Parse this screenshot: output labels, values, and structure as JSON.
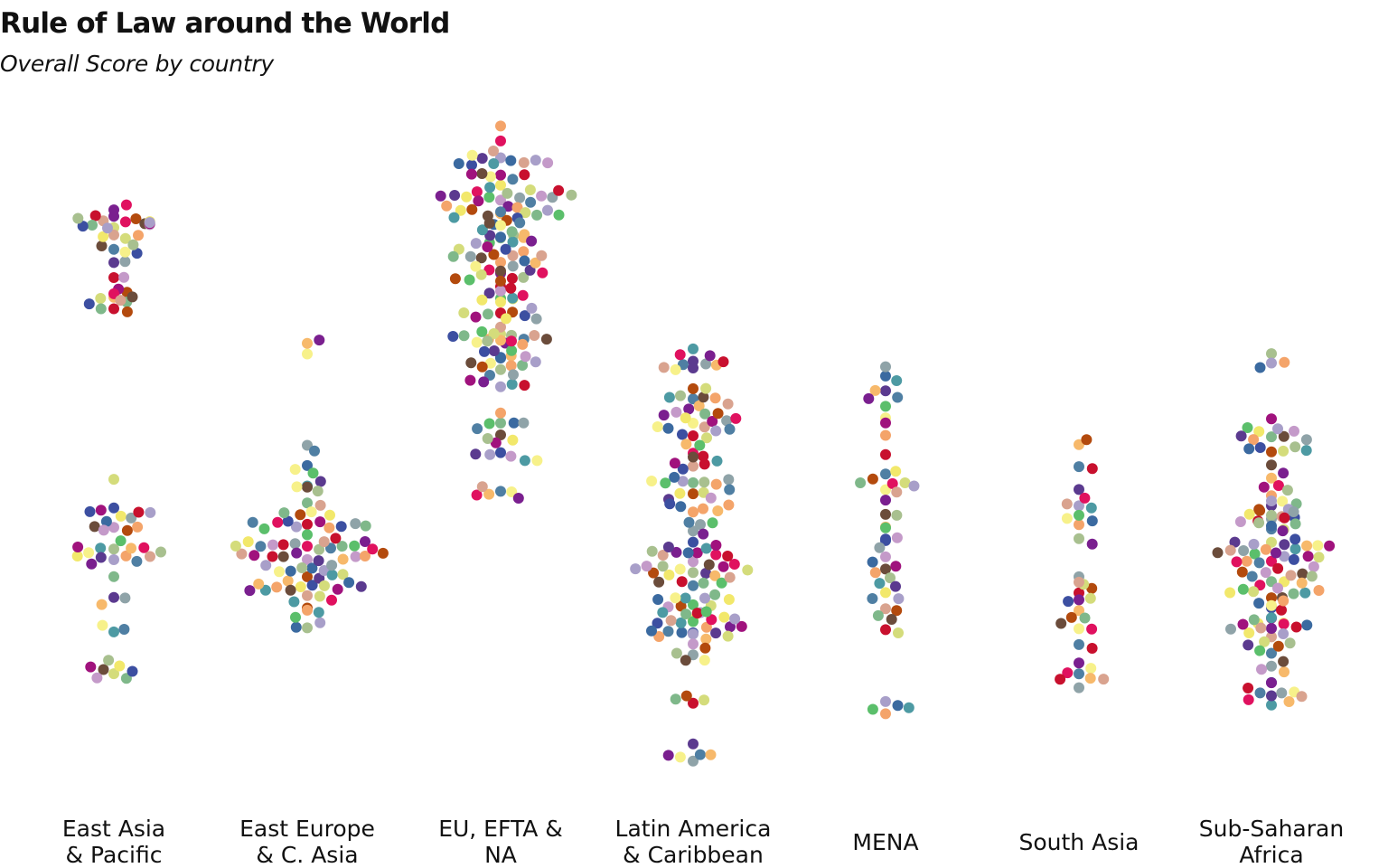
{
  "title": "Rule of Law around the World",
  "subtitle": "Overall Score by country",
  "chart_data": {
    "type": "scatter",
    "title": "Rule of Law around the World",
    "subtitle": "Overall Score by country",
    "xlabel": "",
    "ylabel": "",
    "grid": false,
    "legend": "none",
    "categories": [
      [
        "East Asia",
        "& Pacific"
      ],
      [
        "East Europe",
        "& C. Asia"
      ],
      [
        "EU, EFTA &",
        "NA"
      ],
      [
        "Latin America",
        "& Caribbean"
      ],
      [
        "MENA"
      ],
      [
        "South Asia"
      ],
      [
        "Sub-Saharan",
        "Africa"
      ]
    ],
    "palette": [
      "#7a1f8f",
      "#c8102e",
      "#7fb88a",
      "#f2e86b",
      "#a8c08f",
      "#3b6aa0",
      "#5b3a8f",
      "#f7f18a",
      "#e0115f",
      "#b34a0d",
      "#6b4c3b",
      "#c49ac9",
      "#a89fc9",
      "#5bbf6b",
      "#8fa3a8",
      "#f7b96b",
      "#d9a38f",
      "#d4dc7b",
      "#3c4fa1",
      "#a0127d",
      "#f4a46a",
      "#4d9aa3",
      "#4f7fa3"
    ],
    "ylim": [
      0,
      100
    ],
    "clusters": [
      [
        0,
        83,
        3,
        14
      ],
      [
        0,
        78,
        12,
        20
      ],
      [
        0,
        72,
        4,
        8
      ],
      [
        0,
        38,
        14,
        30
      ],
      [
        0,
        25,
        6,
        6
      ],
      [
        0,
        17,
        4,
        8
      ],
      [
        1,
        65,
        3,
        3
      ],
      [
        1,
        48,
        8,
        7
      ],
      [
        1,
        33,
        18,
        75
      ],
      [
        1,
        25,
        4,
        6
      ],
      [
        2,
        88,
        18,
        55
      ],
      [
        2,
        77,
        14,
        40
      ],
      [
        2,
        69,
        13,
        30
      ],
      [
        2,
        63,
        11,
        26
      ],
      [
        2,
        52,
        9,
        16
      ],
      [
        2,
        43,
        4,
        6
      ],
      [
        3,
        63,
        4,
        10
      ],
      [
        3,
        55,
        12,
        32
      ],
      [
        3,
        46,
        8,
        20
      ],
      [
        3,
        33,
        18,
        55
      ],
      [
        3,
        23,
        10,
        28
      ],
      [
        3,
        12,
        3,
        4
      ],
      [
        3,
        5,
        3,
        6
      ],
      [
        4,
        59,
        13,
        9
      ],
      [
        4,
        44,
        18,
        18
      ],
      [
        4,
        32,
        14,
        14
      ],
      [
        4,
        25,
        8,
        6
      ],
      [
        4,
        12,
        4,
        5
      ],
      [
        5,
        41,
        18,
        16
      ],
      [
        5,
        29,
        6,
        3
      ],
      [
        5,
        24,
        10,
        12
      ],
      [
        5,
        16,
        4,
        8
      ],
      [
        6,
        62,
        4,
        4
      ],
      [
        6,
        51,
        5,
        16
      ],
      [
        6,
        42,
        12,
        20
      ],
      [
        6,
        33,
        19,
        60
      ],
      [
        6,
        22,
        14,
        24
      ],
      [
        6,
        14,
        4,
        10
      ]
    ]
  }
}
